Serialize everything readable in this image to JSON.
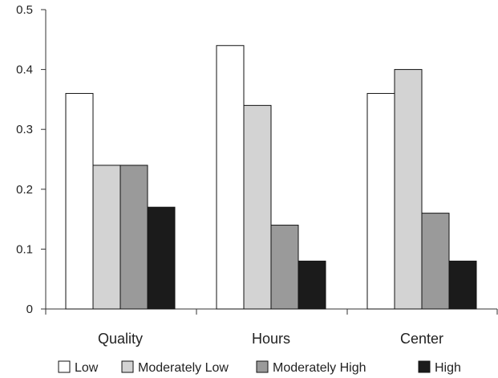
{
  "chart_data": {
    "type": "bar",
    "categories": [
      "Quality",
      "Hours",
      "Center"
    ],
    "series": [
      {
        "name": "Low",
        "values": [
          0.36,
          0.44,
          0.36
        ],
        "color": "#ffffff"
      },
      {
        "name": "Moderately Low",
        "values": [
          0.24,
          0.34,
          0.4
        ],
        "color": "#d3d3d3"
      },
      {
        "name": "Moderately High",
        "values": [
          0.24,
          0.14,
          0.16
        ],
        "color": "#9a9a9a"
      },
      {
        "name": "High",
        "values": [
          0.17,
          0.08,
          0.08
        ],
        "color": "#1b1b1b"
      }
    ],
    "yticks": [
      "0",
      "0.1",
      "0.2",
      "0.3",
      "0.4",
      "0.5"
    ],
    "ylim": [
      0,
      0.5
    ],
    "title": "",
    "xlabel": "",
    "ylabel": "",
    "grid": false,
    "legend_position": "bottom"
  }
}
